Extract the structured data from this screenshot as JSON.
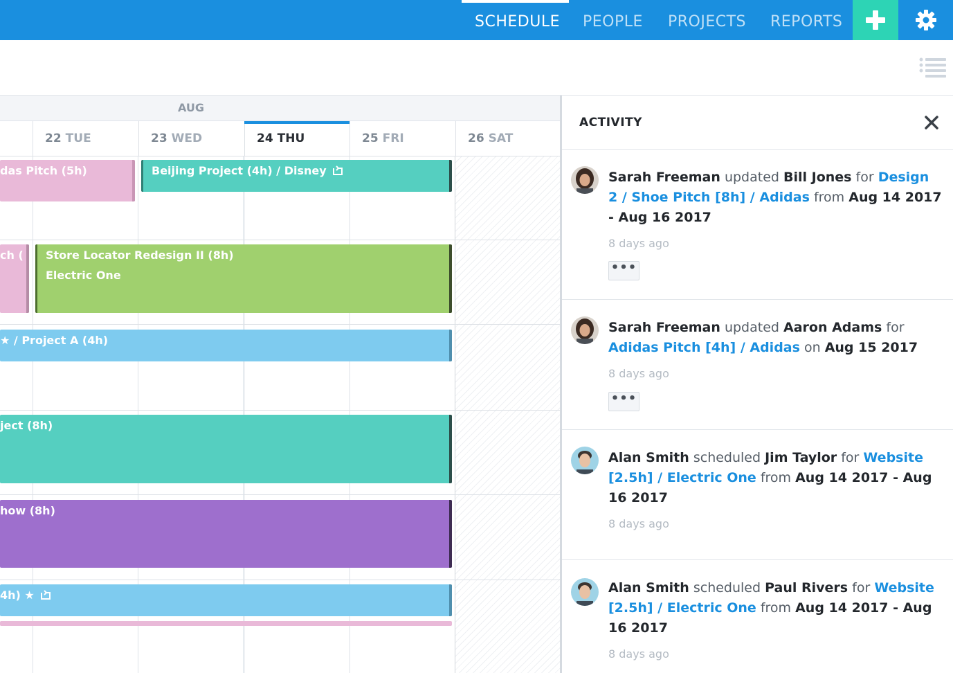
{
  "nav": {
    "items": [
      {
        "label": "SCHEDULE",
        "active": true
      },
      {
        "label": "PEOPLE",
        "active": false
      },
      {
        "label": "PROJECTS",
        "active": false
      },
      {
        "label": "REPORTS",
        "active": false
      }
    ],
    "add_icon": "plus-icon",
    "settings_icon": "gear-icon"
  },
  "toolbar": {
    "list_icon": "list-view-icon"
  },
  "calendar": {
    "month": "AUG",
    "days": [
      {
        "num": "22",
        "dow": "TUE"
      },
      {
        "num": "23",
        "dow": "WED"
      },
      {
        "num": "24",
        "dow": "THU",
        "today": true
      },
      {
        "num": "25",
        "dow": "FRI"
      },
      {
        "num": "26",
        "dow": "SAT"
      }
    ],
    "tasks": [
      {
        "label": "das Pitch (5h)",
        "color": "#e9b9d8"
      },
      {
        "label": "Beijing Project (4h) / Disney",
        "color": "#55cfc0"
      },
      {
        "label": "ch (",
        "color": "#e9b9d8"
      },
      {
        "label": "Store Locator Redesign II (8h)",
        "sub": "Electric One",
        "color": "#a0d06e"
      },
      {
        "label": "★ / Project A (4h)",
        "color": "#7ecbef"
      },
      {
        "label": "ject (8h)",
        "color": "#55cfc0"
      },
      {
        "label": "how (8h)",
        "color": "#9e6fcd"
      },
      {
        "label": "4h) ★",
        "color": "#7ecbef"
      }
    ]
  },
  "activity": {
    "title": "ACTIVITY",
    "close_icon": "close-icon",
    "more_label": "•••",
    "entries": [
      {
        "user": "Sarah Freeman",
        "verb": "updated",
        "target": "Bill Jones",
        "prep": "for",
        "project": "Design 2 / Shoe Pitch [8h] / Adidas",
        "when_prep": "from",
        "when": "Aug 14 2017 - Aug 16 2017",
        "time": "8 days ago"
      },
      {
        "user": "Sarah Freeman",
        "verb": "updated",
        "target": "Aaron Adams",
        "prep": "for",
        "project": "Adidas Pitch [4h] / Adidas",
        "when_prep": "on",
        "when": "Aug 15 2017",
        "time": "8 days ago"
      },
      {
        "user": "Alan Smith",
        "verb": "scheduled",
        "target": "Jim Taylor",
        "prep": "for",
        "project": "Website [2.5h] / Electric One",
        "when_prep": "from",
        "when": "Aug 14 2017 - Aug 16 2017",
        "time": "8 days ago"
      },
      {
        "user": "Alan Smith",
        "verb": "scheduled",
        "target": "Paul Rivers",
        "prep": "for",
        "project": "Website [2.5h] / Electric One",
        "when_prep": "from",
        "when": "Aug 14 2017 - Aug 16 2017",
        "time": "8 days ago"
      }
    ]
  }
}
